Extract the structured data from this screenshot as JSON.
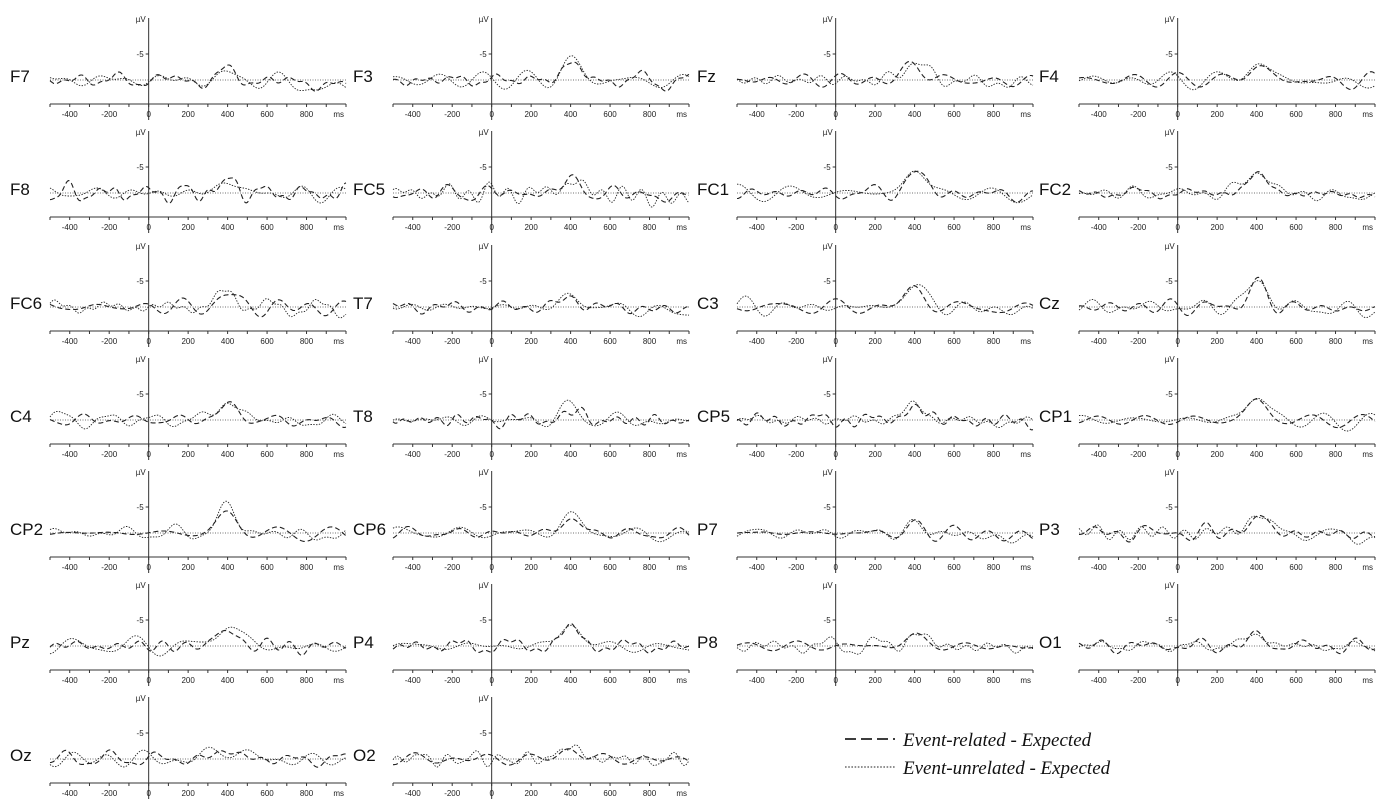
{
  "chart_data": {
    "type": "line",
    "layout": "grid of small-multiple ERP panels, 4 columns x 7 rows",
    "y_unit": "µV",
    "x_unit": "ms",
    "x_ticks": [
      "-400",
      "-200",
      "0",
      "200",
      "400",
      "600",
      "800"
    ],
    "y_tick": "-5",
    "y_zero": "0",
    "xlim": [
      -500,
      1000
    ],
    "ylim": [
      1.5,
      -8
    ],
    "y_axis_inverted": true,
    "grid": false,
    "legend_position": "bottom-right",
    "legend": [
      {
        "label": "Event-related - Expected",
        "style": "dashed",
        "color": "#222222"
      },
      {
        "label": "Event-unrelated - Expected",
        "style": "dotted",
        "color": "#222222"
      }
    ],
    "peak_latency_ms": 400,
    "channels": [
      {
        "name": "F7",
        "er_peak": -1.2,
        "eu_peak": -0.8,
        "late": 1.4
      },
      {
        "name": "F3",
        "er_peak": -3.0,
        "eu_peak": -3.3,
        "late": 0.3
      },
      {
        "name": "Fz",
        "er_peak": -3.0,
        "eu_peak": -3.8,
        "late": 0.6
      },
      {
        "name": "F4",
        "er_peak": -2.7,
        "eu_peak": -3.6,
        "late": 0.5
      },
      {
        "name": "F8",
        "er_peak": -2.0,
        "eu_peak": -2.2,
        "late": 0.2
      },
      {
        "name": "FC5",
        "er_peak": -2.1,
        "eu_peak": -2.3,
        "late": 1.0
      },
      {
        "name": "FC1",
        "er_peak": -3.8,
        "eu_peak": -4.5,
        "late": 0.5
      },
      {
        "name": "FC2",
        "er_peak": -3.6,
        "eu_peak": -4.8,
        "late": 0.6
      },
      {
        "name": "FC6",
        "er_peak": -2.2,
        "eu_peak": -2.8,
        "late": 0.3
      },
      {
        "name": "T7",
        "er_peak": -1.7,
        "eu_peak": -2.0,
        "late": 0.8
      },
      {
        "name": "C3",
        "er_peak": -3.4,
        "eu_peak": -4.3,
        "late": 0.6
      },
      {
        "name": "Cz",
        "er_peak": -4.0,
        "eu_peak": -5.2,
        "late": 0.6
      },
      {
        "name": "C4",
        "er_peak": -2.8,
        "eu_peak": -4.0,
        "late": 0.4
      },
      {
        "name": "T8",
        "er_peak": -1.5,
        "eu_peak": -2.2,
        "late": 0.3
      },
      {
        "name": "CP5",
        "er_peak": -2.5,
        "eu_peak": -3.0,
        "late": 0.5
      },
      {
        "name": "CP1",
        "er_peak": -3.6,
        "eu_peak": -4.9,
        "late": 0.4
      },
      {
        "name": "CP2",
        "er_peak": -3.6,
        "eu_peak": -4.9,
        "late": 0.5
      },
      {
        "name": "CP6",
        "er_peak": -2.6,
        "eu_peak": -3.2,
        "late": 0.4
      },
      {
        "name": "P7",
        "er_peak": -1.0,
        "eu_peak": -1.3,
        "late": 1.0
      },
      {
        "name": "P3",
        "er_peak": -3.0,
        "eu_peak": -3.9,
        "late": 0.5
      },
      {
        "name": "Pz",
        "er_peak": -3.2,
        "eu_peak": -4.8,
        "late": 0.3
      },
      {
        "name": "P4",
        "er_peak": -3.2,
        "eu_peak": -4.4,
        "late": 0.3
      },
      {
        "name": "P8",
        "er_peak": -1.8,
        "eu_peak": -2.4,
        "late": 0.3
      },
      {
        "name": "O1",
        "er_peak": -1.6,
        "eu_peak": -2.4,
        "late": 0.2
      },
      {
        "name": "Oz",
        "er_peak": -1.8,
        "eu_peak": -2.5,
        "late": 0.2
      },
      {
        "name": "O2",
        "er_peak": -1.9,
        "eu_peak": -2.5,
        "late": 0.2
      }
    ]
  }
}
